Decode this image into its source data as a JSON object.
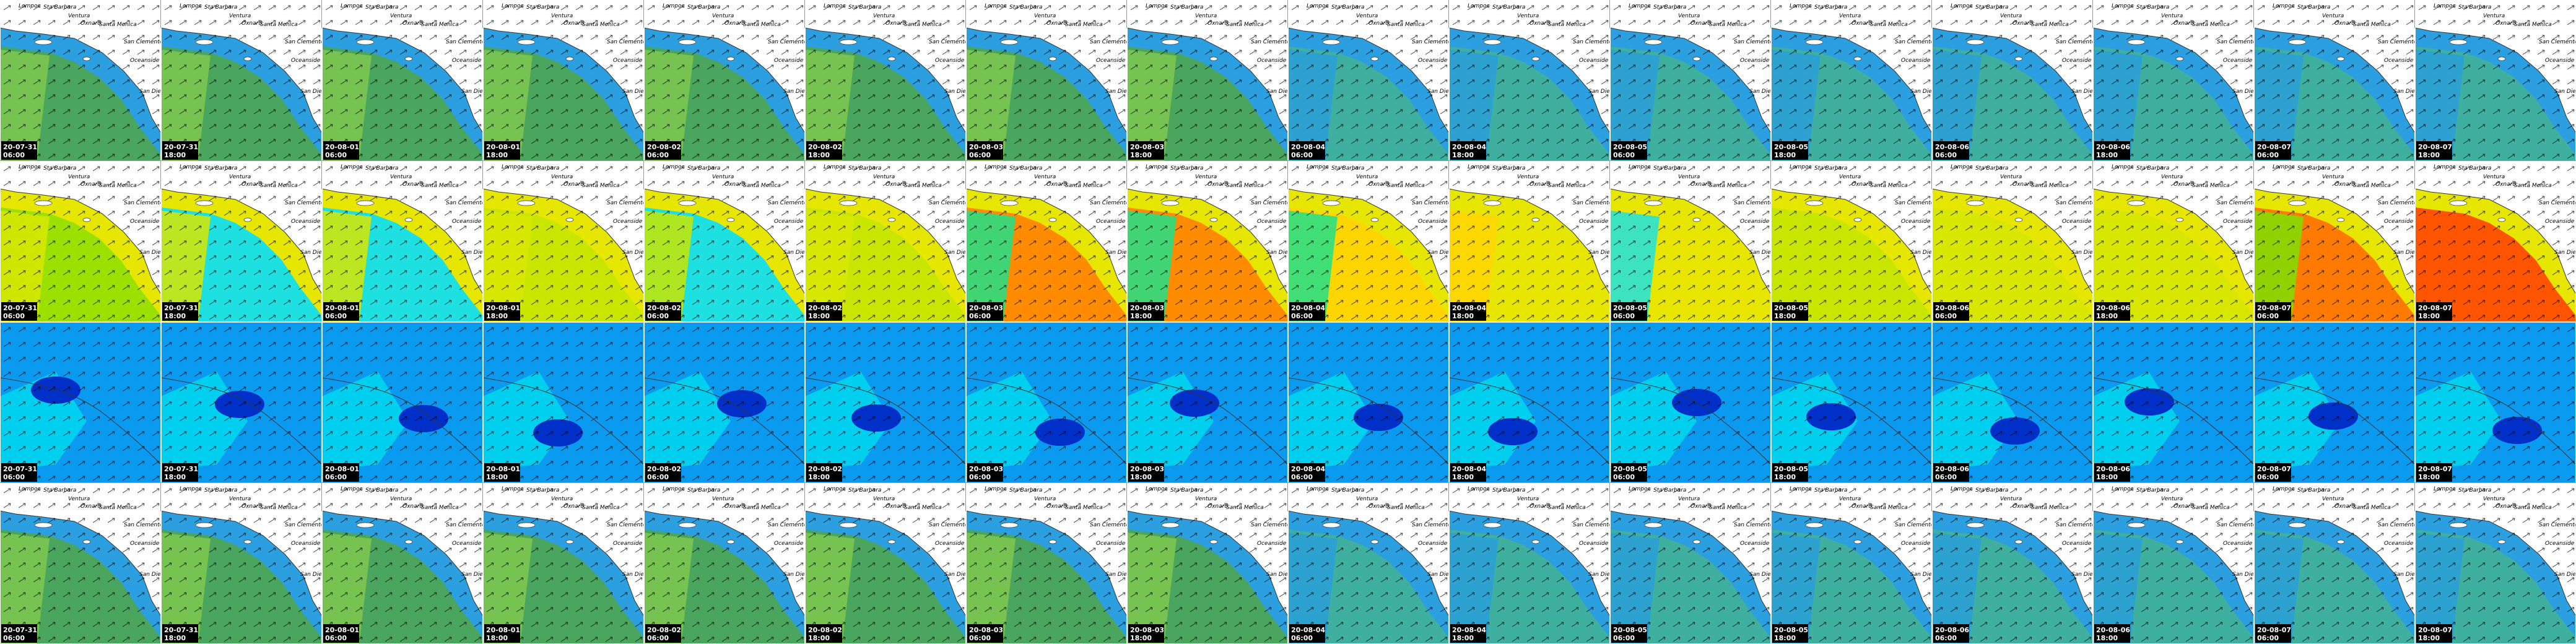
{
  "columns": [
    {
      "date": "20-07-31",
      "time": "06:00"
    },
    {
      "date": "20-07-31",
      "time": "18:00"
    },
    {
      "date": "20-08-01",
      "time": "06:00"
    },
    {
      "date": "20-08-01",
      "time": "18:00"
    },
    {
      "date": "20-08-02",
      "time": "06:00"
    },
    {
      "date": "20-08-02",
      "time": "18:00"
    },
    {
      "date": "20-08-03",
      "time": "06:00"
    },
    {
      "date": "20-08-03",
      "time": "18:00"
    },
    {
      "date": "20-08-04",
      "time": "06:00"
    },
    {
      "date": "20-08-04",
      "time": "18:00"
    },
    {
      "date": "20-08-05",
      "time": "06:00"
    },
    {
      "date": "20-08-05",
      "time": "18:00"
    },
    {
      "date": "20-08-06",
      "time": "06:00"
    },
    {
      "date": "20-08-06",
      "time": "18:00"
    },
    {
      "date": "20-08-07",
      "time": "06:00"
    },
    {
      "date": "20-08-07",
      "time": "18:00"
    }
  ],
  "places": [
    "Lompoc",
    "Sta Barbara",
    "Ventura",
    "Santa Monica",
    "Oxnard",
    "San Clemente",
    "Oceanside",
    "San Diego"
  ]
}
